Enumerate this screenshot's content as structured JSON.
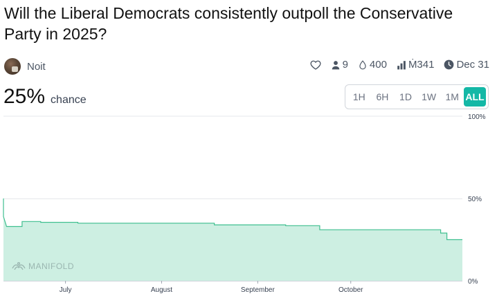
{
  "market": {
    "title": "Will the Liberal Democrats consistently outpoll the Conservative Party in 2025?",
    "author": "Noit",
    "stats": {
      "traders": "9",
      "liquidity": "400",
      "volume": "Ṁ341",
      "close": "Dec 31"
    },
    "probability": "25%",
    "probability_label": "chance"
  },
  "range_buttons": [
    "1H",
    "6H",
    "1D",
    "1W",
    "1M",
    "ALL"
  ],
  "active_range": "ALL",
  "watermark": "MANIFOLD",
  "icons": {
    "like": "heart-icon",
    "traders": "user-icon",
    "liquidity": "droplet-icon",
    "volume": "bar-chart-icon",
    "close": "clock-icon"
  },
  "colors": {
    "accent": "#14b8a6",
    "line": "#3fbf8f",
    "fill": "#cdefe2"
  },
  "chart_data": {
    "type": "area",
    "x_labels": [
      "July",
      "August",
      "September",
      "October"
    ],
    "y_ticks": [
      "100%",
      "50%",
      "0%"
    ],
    "ylim": [
      0,
      100
    ],
    "series": [
      {
        "values": [
          {
            "x": "2025-06-11",
            "y": 50
          },
          {
            "x": "2025-06-11",
            "y": 39
          },
          {
            "x": "2025-06-12",
            "y": 33
          },
          {
            "x": "2025-06-17",
            "y": 33
          },
          {
            "x": "2025-06-17",
            "y": 36
          },
          {
            "x": "2025-06-23",
            "y": 36
          },
          {
            "x": "2025-06-23",
            "y": 35.5
          },
          {
            "x": "2025-07-05",
            "y": 35.5
          },
          {
            "x": "2025-07-05",
            "y": 35
          },
          {
            "x": "2025-08-18",
            "y": 35
          },
          {
            "x": "2025-08-18",
            "y": 34
          },
          {
            "x": "2025-09-10",
            "y": 34
          },
          {
            "x": "2025-09-10",
            "y": 33.5
          },
          {
            "x": "2025-09-21",
            "y": 33.5
          },
          {
            "x": "2025-09-21",
            "y": 31
          },
          {
            "x": "2025-10-30",
            "y": 31
          },
          {
            "x": "2025-10-30",
            "y": 29
          },
          {
            "x": "2025-11-01",
            "y": 29
          },
          {
            "x": "2025-11-01",
            "y": 25
          },
          {
            "x": "2025-11-06",
            "y": 25
          }
        ]
      }
    ]
  }
}
